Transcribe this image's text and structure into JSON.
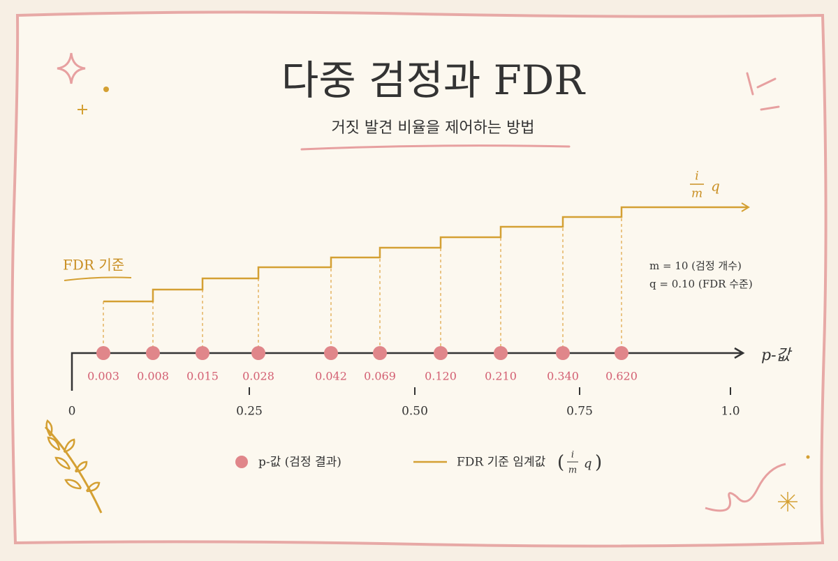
{
  "header": {
    "title": "다중 검정과 FDR",
    "subtitle": "거짓 발견 비율을 제어하는 방법"
  },
  "threshold_label": "FDR 기준",
  "line_label": {
    "numerator": "i",
    "denominator": "m",
    "factor": "q"
  },
  "parameters": [
    "m = 10 (검정 개수)",
    "q = 0.10 (FDR 수준)"
  ],
  "axis": {
    "label": "p-값",
    "ticks": [
      "0",
      "0.25",
      "0.50",
      "0.75",
      "1.0"
    ]
  },
  "p_values": [
    "0.003",
    "0.008",
    "0.015",
    "0.028",
    "0.042",
    "0.069",
    "0.120",
    "0.210",
    "0.340",
    "0.620"
  ],
  "legend": {
    "points": "p-값 (검정 결과)",
    "line": "FDR 기준 임계값"
  }
}
